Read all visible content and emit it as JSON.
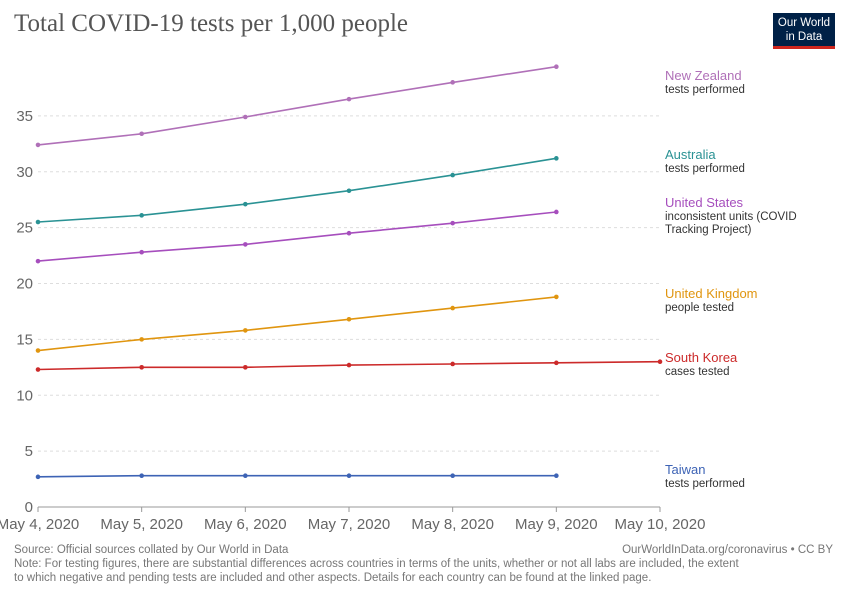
{
  "header": {
    "title": "Total COVID-19 tests per 1,000 people",
    "logo_line1": "Our World",
    "logo_line2": "in Data"
  },
  "footer": {
    "source": "Source: Official sources collated by Our World in Data",
    "url": "OurWorldInData.org/coronavirus • CC BY",
    "note_line1": "Note: For testing figures, there are substantial differences across countries in terms of the units, whether or not all labs are included, the extent",
    "note_line2": "to which negative and pending tests are included and other aspects. Details for each country can be found at the linked page."
  },
  "chart_data": {
    "type": "line",
    "title": "Total COVID-19 tests per 1,000 people",
    "xlabel": "",
    "ylabel": "",
    "x": [
      "May 4, 2020",
      "May 5, 2020",
      "May 6, 2020",
      "May 7, 2020",
      "May 8, 2020",
      "May 9, 2020",
      "May 10, 2020"
    ],
    "ylim": [
      0,
      40
    ],
    "yticks": [
      0,
      5,
      10,
      15,
      20,
      25,
      30,
      35
    ],
    "grid": true,
    "legend": "right, inline labels",
    "series": [
      {
        "name": "New Zealand",
        "sublabel": [
          "tests performed"
        ],
        "color": "#b070b8",
        "values": [
          32.4,
          33.4,
          34.9,
          36.5,
          38.0,
          39.4,
          null
        ]
      },
      {
        "name": "Australia",
        "sublabel": [
          "tests performed"
        ],
        "color": "#2a9294",
        "values": [
          25.5,
          26.1,
          27.1,
          28.3,
          29.7,
          31.2,
          null
        ]
      },
      {
        "name": "United States",
        "sublabel": [
          "inconsistent units (COVID",
          "Tracking Project)"
        ],
        "color": "#a64ebd",
        "values": [
          22.0,
          22.8,
          23.5,
          24.5,
          25.4,
          26.4,
          null
        ]
      },
      {
        "name": "United Kingdom",
        "sublabel": [
          "people tested"
        ],
        "color": "#e0950f",
        "values": [
          14.0,
          15.0,
          15.8,
          16.8,
          17.8,
          18.8,
          null
        ]
      },
      {
        "name": "South Korea",
        "sublabel": [
          "cases tested"
        ],
        "color": "#cc2a2a",
        "values": [
          12.3,
          12.5,
          12.5,
          12.7,
          12.8,
          12.9,
          13.0
        ]
      },
      {
        "name": "Taiwan",
        "sublabel": [
          "tests performed"
        ],
        "color": "#3d63b5",
        "values": [
          2.7,
          2.8,
          2.8,
          2.8,
          2.8,
          2.8,
          null
        ]
      }
    ]
  }
}
